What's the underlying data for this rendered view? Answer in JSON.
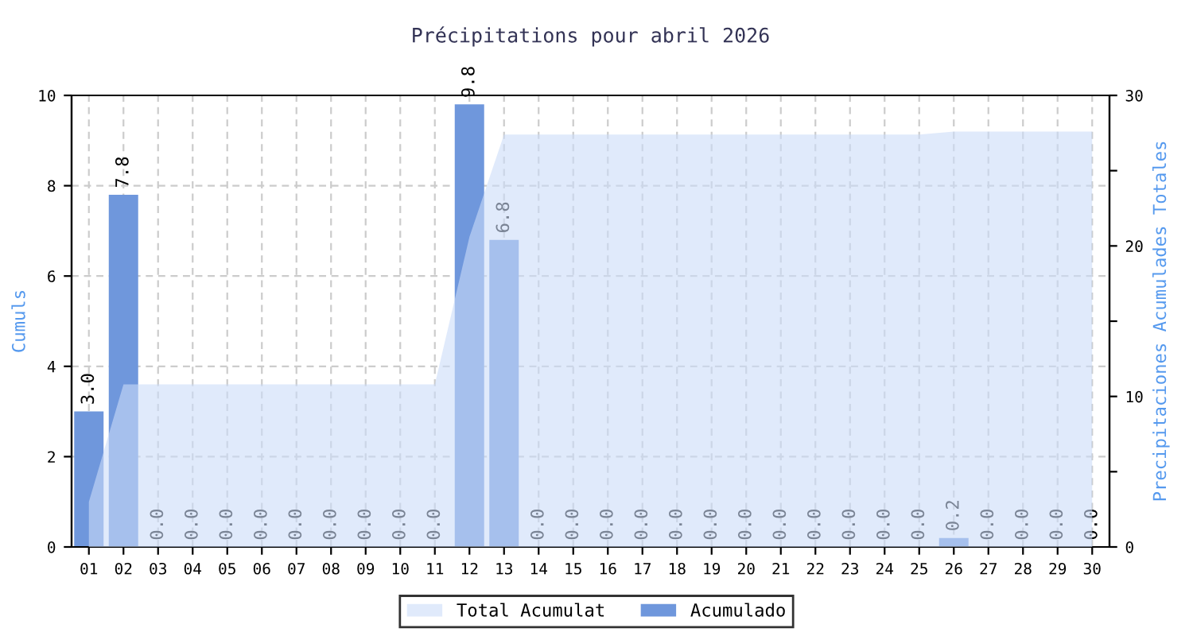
{
  "chart_data": {
    "type": "bar",
    "title": "Précipitations pour abril 2026",
    "ylabel": "Cumuls",
    "y2label": "Precipitaciones Acumulades Totales",
    "categories": [
      "01",
      "02",
      "03",
      "04",
      "05",
      "06",
      "07",
      "08",
      "09",
      "10",
      "11",
      "12",
      "13",
      "14",
      "15",
      "16",
      "17",
      "18",
      "19",
      "20",
      "21",
      "22",
      "23",
      "24",
      "25",
      "26",
      "27",
      "28",
      "29",
      "30"
    ],
    "series": [
      {
        "name": "Total Acumulat",
        "type": "area",
        "axis": "y2",
        "color": "#ccdcf8",
        "values": [
          3.0,
          10.8,
          10.8,
          10.8,
          10.8,
          10.8,
          10.8,
          10.8,
          10.8,
          10.8,
          10.8,
          20.6,
          27.4,
          27.4,
          27.4,
          27.4,
          27.4,
          27.4,
          27.4,
          27.4,
          27.4,
          27.4,
          27.4,
          27.4,
          27.4,
          27.6,
          27.6,
          27.6,
          27.6,
          27.6
        ]
      },
      {
        "name": "Acumulado",
        "color": "#6f97dc",
        "values": [
          3.0,
          7.8,
          0.0,
          0.0,
          0.0,
          0.0,
          0.0,
          0.0,
          0.0,
          0.0,
          0.0,
          9.8,
          6.8,
          0.0,
          0.0,
          0.0,
          0.0,
          0.0,
          0.0,
          0.0,
          0.0,
          0.0,
          0.0,
          0.0,
          0.0,
          0.2,
          0.0,
          0.0,
          0.0,
          0.0
        ],
        "value_labels": [
          "3.0",
          "7.8",
          "0.0",
          "0.0",
          "0.0",
          "0.0",
          "0.0",
          "0.0",
          "0.0",
          "0.0",
          "0.0",
          "9.8",
          "6.8",
          "0.0",
          "0.0",
          "0.0",
          "0.0",
          "0.0",
          "0.0",
          "0.0",
          "0.0",
          "0.0",
          "0.0",
          "0.0",
          "0.0",
          "0.2",
          "0.0",
          "0.0",
          "0.0",
          "0.0"
        ]
      }
    ],
    "ylim": [
      0,
      10
    ],
    "yticks": [
      0,
      2,
      4,
      6,
      8,
      10
    ],
    "y2lim": [
      0,
      30
    ],
    "y2ticks": [
      0,
      {
        "value": 5,
        "label": null
      },
      10,
      {
        "value": 15,
        "label": null
      },
      20,
      {
        "value": 25,
        "label": null
      },
      30
    ],
    "grid": true,
    "legend": "bottom"
  }
}
